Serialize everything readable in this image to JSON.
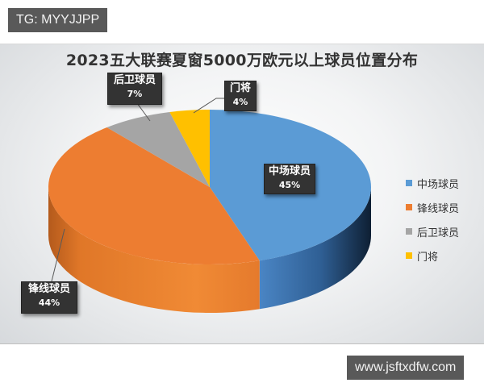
{
  "watermarks": {
    "top_left": "TG: MYYJJPP",
    "bottom_right": "www.jsftxdfw.com"
  },
  "chart_data": {
    "type": "pie",
    "style": "3d",
    "title": "2023五大联赛夏窗5000万欧元以上球员位置分布",
    "categories": [
      "中场球员",
      "锋线球员",
      "后卫球员",
      "门将"
    ],
    "values": [
      45,
      44,
      7,
      4
    ],
    "unit": "%",
    "colors": [
      "#5b9bd5",
      "#ed7d31",
      "#a5a5a5",
      "#ffc000"
    ],
    "start_angle": "12 o'clock",
    "direction": "clockwise",
    "data_labels": [
      {
        "name": "中场球员",
        "pct": "45%"
      },
      {
        "name": "锋线球员",
        "pct": "44%"
      },
      {
        "name": "后卫球员",
        "pct": "7%"
      },
      {
        "name": "门将",
        "pct": "4%"
      }
    ],
    "legend": {
      "position": "right",
      "entries": [
        "中场球员",
        "锋线球员",
        "后卫球员",
        "门将"
      ]
    }
  }
}
